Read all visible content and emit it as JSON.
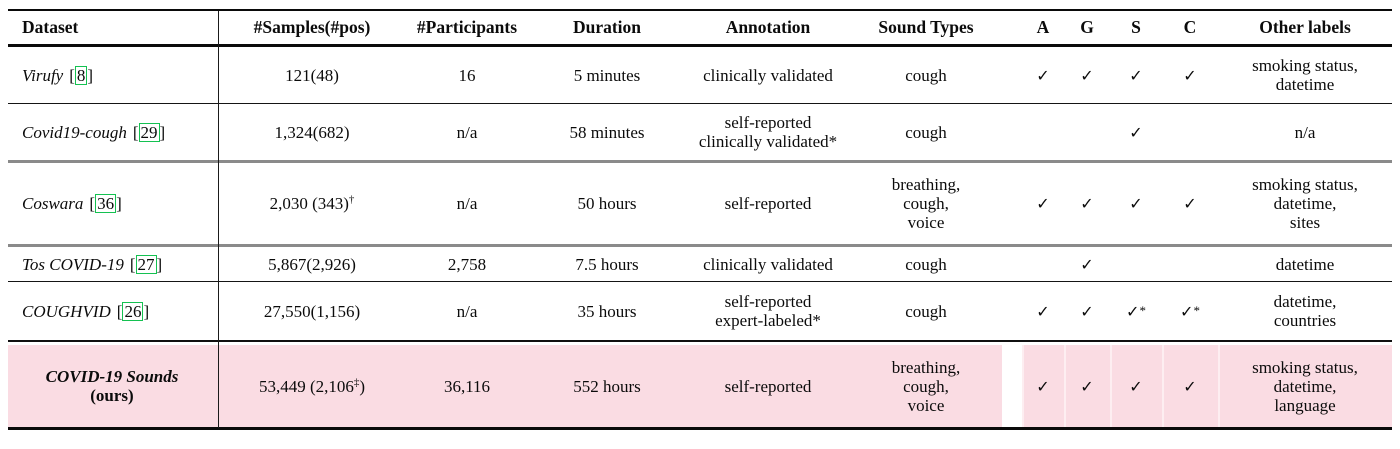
{
  "colors": {
    "highlight_pink": "#fadce3",
    "citation_green": "#14c151",
    "gray_rule": "#8a8a8a",
    "text": "#0b0b0b"
  },
  "table": {
    "header": {
      "dataset": "Dataset",
      "samples": "#Samples(#pos)",
      "participants": "#Participants",
      "duration": "Duration",
      "annotation": "Annotation",
      "sound_types": "Sound Types",
      "a": "A",
      "g": "G",
      "s": "S",
      "c": "C",
      "other": "Other labels"
    },
    "rows": [
      {
        "name": "Virufy",
        "name2": "",
        "cite": "8",
        "samples": "121(48)",
        "samples_sup": "",
        "samples_tail": "",
        "participants": "16",
        "duration": "5 minutes",
        "annotation": "clinically validated",
        "sound_types": "cough",
        "checks": [
          "✓",
          "✓",
          "✓",
          "✓"
        ],
        "other": "smoking status,\ndatetime",
        "highlight": false
      },
      {
        "name": "Covid19-cough",
        "name2": "",
        "cite": "29",
        "samples": "1,324(682)",
        "samples_sup": "",
        "samples_tail": "",
        "participants": "n/a",
        "duration": "58 minutes",
        "annotation": "self-reported\nclinically validated*",
        "sound_types": "cough",
        "checks": [
          "",
          "",
          "✓",
          ""
        ],
        "other": "n/a",
        "highlight": false
      },
      {
        "name": "Coswara",
        "name2": "",
        "cite": "36",
        "samples": "2,030 (343)",
        "samples_sup": "†",
        "samples_tail": "",
        "participants": "n/a",
        "duration": "50 hours",
        "annotation": "self-reported",
        "sound_types": "breathing,\ncough,\nvoice",
        "checks": [
          "✓",
          "✓",
          "✓",
          "✓"
        ],
        "other": "smoking status,\ndatetime,\nsites",
        "highlight": false
      },
      {
        "name": "Tos COVID-19",
        "name2": "",
        "cite": "27",
        "samples": "5,867(2,926)",
        "samples_sup": "",
        "samples_tail": "",
        "participants": "2,758",
        "duration": "7.5 hours",
        "annotation": "clinically validated",
        "sound_types": "cough",
        "checks": [
          "",
          "✓",
          "",
          ""
        ],
        "other": "datetime",
        "highlight": false
      },
      {
        "name": "COUGHVID",
        "name2": "",
        "cite": "26",
        "samples": "27,550(1,156)",
        "samples_sup": "",
        "samples_tail": "",
        "participants": "n/a",
        "duration": "35 hours",
        "annotation": "self-reported\nexpert-labeled*",
        "sound_types": "cough",
        "checks": [
          "✓",
          "✓",
          "✓*",
          "✓*"
        ],
        "other": "datetime,\ncountries",
        "highlight": false
      },
      {
        "name": "COVID-19 Sounds",
        "name2": "(ours)",
        "cite": "",
        "samples": "53,449 (2,106",
        "samples_sup": "‡",
        "samples_tail": ")",
        "participants": "36,116",
        "duration": "552 hours",
        "annotation": "self-reported",
        "sound_types": "breathing,\ncough,\nvoice",
        "checks": [
          "✓",
          "✓",
          "✓",
          "✓"
        ],
        "other": "smoking status,\ndatetime,\nlanguage",
        "highlight": true
      }
    ]
  }
}
